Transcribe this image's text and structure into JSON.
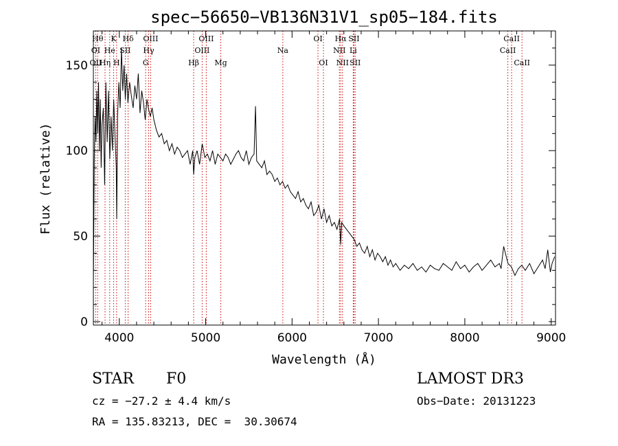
{
  "chart_data": {
    "type": "line",
    "title": "spec−56650−VB136N31V1_sp05−184.fits",
    "xlabel": "Wavelength (Å)",
    "ylabel": "Flux (relative)",
    "xlim": [
      3700,
      9050
    ],
    "ylim": [
      -2,
      170
    ],
    "x_ticks": [
      4000,
      5000,
      6000,
      7000,
      8000,
      9000
    ],
    "y_ticks": [
      0,
      50,
      100,
      150
    ],
    "series": [
      {
        "name": "flux",
        "color": "#000000",
        "x": [
          3700,
          3710,
          3720,
          3730,
          3740,
          3750,
          3760,
          3770,
          3780,
          3790,
          3800,
          3815,
          3830,
          3845,
          3860,
          3875,
          3890,
          3905,
          3920,
          3935,
          3950,
          3965,
          3970,
          3980,
          3995,
          4010,
          4025,
          4040,
          4055,
          4070,
          4085,
          4100,
          4120,
          4140,
          4160,
          4180,
          4200,
          4220,
          4240,
          4260,
          4280,
          4300,
          4320,
          4340,
          4360,
          4380,
          4400,
          4430,
          4460,
          4490,
          4520,
          4550,
          4580,
          4610,
          4640,
          4670,
          4700,
          4730,
          4760,
          4790,
          4820,
          4850,
          4861,
          4875,
          4900,
          4930,
          4960,
          4990,
          5020,
          5050,
          5080,
          5110,
          5140,
          5170,
          5200,
          5230,
          5260,
          5290,
          5320,
          5350,
          5380,
          5410,
          5440,
          5470,
          5500,
          5530,
          5560,
          5577,
          5590,
          5620,
          5650,
          5680,
          5710,
          5740,
          5770,
          5800,
          5830,
          5860,
          5890,
          5920,
          5950,
          5980,
          6010,
          6040,
          6070,
          6100,
          6130,
          6160,
          6190,
          6220,
          6250,
          6280,
          6310,
          6340,
          6370,
          6400,
          6430,
          6460,
          6490,
          6520,
          6550,
          6563,
          6575,
          6600,
          6630,
          6660,
          6690,
          6720,
          6750,
          6780,
          6810,
          6840,
          6870,
          6900,
          6930,
          6960,
          6990,
          7020,
          7050,
          7080,
          7110,
          7140,
          7170,
          7200,
          7250,
          7300,
          7350,
          7400,
          7450,
          7500,
          7550,
          7600,
          7650,
          7700,
          7750,
          7800,
          7850,
          7900,
          7950,
          8000,
          8050,
          8100,
          8150,
          8200,
          8250,
          8300,
          8350,
          8400,
          8420,
          8450,
          8500,
          8540,
          8580,
          8620,
          8660,
          8700,
          8750,
          8800,
          8850,
          8900,
          8930,
          8960,
          8990,
          9010,
          9040
        ],
        "values": [
          20,
          95,
          120,
          105,
          135,
          110,
          140,
          100,
          130,
          90,
          115,
          125,
          80,
          140,
          105,
          135,
          95,
          120,
          100,
          130,
          110,
          90,
          60,
          120,
          140,
          125,
          160,
          135,
          150,
          130,
          145,
          128,
          140,
          132,
          125,
          138,
          130,
          145,
          122,
          135,
          128,
          118,
          130,
          124,
          120,
          125,
          118,
          112,
          108,
          110,
          104,
          106,
          100,
          104,
          98,
          102,
          100,
          96,
          98,
          100,
          92,
          100,
          86,
          96,
          100,
          92,
          104,
          96,
          98,
          94,
          100,
          92,
          98,
          96,
          94,
          98,
          96,
          92,
          95,
          98,
          100,
          96,
          94,
          100,
          92,
          96,
          98,
          126,
          94,
          92,
          90,
          94,
          86,
          88,
          86,
          82,
          84,
          80,
          82,
          78,
          80,
          76,
          74,
          72,
          76,
          70,
          72,
          68,
          66,
          70,
          62,
          64,
          68,
          60,
          66,
          58,
          62,
          56,
          58,
          54,
          60,
          45,
          58,
          56,
          54,
          52,
          50,
          48,
          44,
          46,
          42,
          40,
          44,
          38,
          42,
          36,
          40,
          38,
          35,
          38,
          33,
          36,
          32,
          34,
          30,
          33,
          31,
          34,
          30,
          32,
          29,
          33,
          31,
          30,
          34,
          32,
          30,
          35,
          31,
          33,
          29,
          32,
          34,
          30,
          33,
          36,
          32,
          34,
          31,
          44,
          34,
          32,
          27,
          31,
          33,
          30,
          34,
          28,
          32,
          36,
          31,
          42,
          29,
          34,
          38
        ]
      }
    ],
    "line_labels": [
      {
        "text": "Hθ",
        "wl": 3750,
        "row": 1
      },
      {
        "text": "K",
        "wl": 3934,
        "row": 1
      },
      {
        "text": "Hδ",
        "wl": 4102,
        "row": 1
      },
      {
        "text": "OIII",
        "wl": 4363,
        "row": 1
      },
      {
        "text": "OIII",
        "wl": 5007,
        "row": 1
      },
      {
        "text": "OI",
        "wl": 6300,
        "row": 1
      },
      {
        "text": "Hα",
        "wl": 6563,
        "row": 1
      },
      {
        "text": "SII",
        "wl": 6717,
        "row": 1
      },
      {
        "text": "CaII",
        "wl": 8542,
        "row": 1
      },
      {
        "text": "OI",
        "wl": 3727,
        "row": 2
      },
      {
        "text": "He",
        "wl": 3889,
        "row": 2
      },
      {
        "text": "SII",
        "wl": 4069,
        "row": 2
      },
      {
        "text": "Hγ",
        "wl": 4340,
        "row": 2
      },
      {
        "text": "OIII",
        "wl": 4959,
        "row": 2
      },
      {
        "text": "Na",
        "wl": 5893,
        "row": 2
      },
      {
        "text": "NII",
        "wl": 6548,
        "row": 2
      },
      {
        "text": "Li",
        "wl": 6708,
        "row": 2
      },
      {
        "text": "CaII",
        "wl": 8498,
        "row": 2
      },
      {
        "text": "OII",
        "wl": 3727,
        "row": 3
      },
      {
        "text": "Hη",
        "wl": 3835,
        "row": 3
      },
      {
        "text": "H",
        "wl": 3969,
        "row": 3
      },
      {
        "text": "G",
        "wl": 4305,
        "row": 3
      },
      {
        "text": "Hβ",
        "wl": 4861,
        "row": 3
      },
      {
        "text": "Mg",
        "wl": 5175,
        "row": 3
      },
      {
        "text": "OI",
        "wl": 6363,
        "row": 3
      },
      {
        "text": "NII",
        "wl": 6584,
        "row": 3
      },
      {
        "text": "SII",
        "wl": 6731,
        "row": 3
      },
      {
        "text": "CaII",
        "wl": 8662,
        "row": 3
      }
    ],
    "line_positions": [
      3727,
      3750,
      3835,
      3889,
      3934,
      3969,
      4069,
      4102,
      4305,
      4340,
      4363,
      4861,
      4959,
      5007,
      5175,
      5893,
      6300,
      6363,
      6548,
      6563,
      6584,
      6708,
      6717,
      6731,
      8498,
      8542,
      8662
    ],
    "line_color": "#cc0000"
  },
  "info": {
    "object_class": "STAR",
    "subclass": "F0",
    "survey": "LAMOST DR3",
    "cz": "cz = −27.2 ± 4.4 km/s",
    "obs_date": "Obs−Date: 20131223",
    "coords": "RA = 135.83213, DEC =  30.30674"
  }
}
